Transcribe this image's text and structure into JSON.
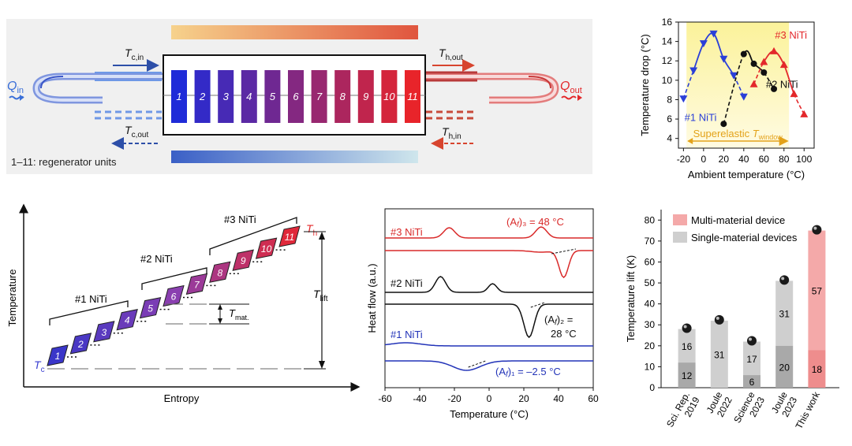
{
  "panel_a": {
    "units": [
      "1",
      "2",
      "3",
      "4",
      "5",
      "6",
      "7",
      "8",
      "9",
      "10",
      "11"
    ],
    "q_in": "Q",
    "q_in_sub": "in",
    "q_out": "Q",
    "q_out_sub": "out",
    "tc_in": "T",
    "tc_in_sub": "c,in",
    "tc_out": "T",
    "tc_out_sub": "c,out",
    "th_out": "T",
    "th_out_sub": "h,out",
    "th_in": "T",
    "th_in_sub": "h,in",
    "caption": "1–11: regenerator units",
    "colors": {
      "cold": "#1f2bd8",
      "hot": "#e8242a",
      "panel_bg": "#f0f0f0"
    }
  },
  "chart_b": {
    "type": "line",
    "ylabel": "Temperature drop (°C)",
    "xlabel": "Ambient temperature (°C)",
    "xlim": [
      -25,
      110
    ],
    "ylim": [
      3,
      16
    ],
    "xticks": [
      -20,
      0,
      20,
      40,
      60,
      80,
      100
    ],
    "yticks": [
      4,
      6,
      8,
      10,
      12,
      14,
      16
    ],
    "window_label": "Superelastic ",
    "window_T": "T",
    "window_sub": "window",
    "window_range": [
      -17,
      85
    ],
    "series": [
      {
        "name": "#1 NiTi",
        "color": "#2a3fd8",
        "marker": "triangle-down",
        "x": [
          -20,
          -10,
          0,
          10,
          20,
          30,
          40
        ],
        "y": [
          8.1,
          11.0,
          13.8,
          14.8,
          12.2,
          10.5,
          8.3
        ]
      },
      {
        "name": "#2 NiTi",
        "color": "#111111",
        "marker": "circle",
        "x": [
          20,
          40,
          50,
          60,
          70
        ],
        "y": [
          5.5,
          12.7,
          11.7,
          10.8,
          9.1
        ]
      },
      {
        "name": "#3 NiTi",
        "color": "#e3282b",
        "marker": "triangle-up",
        "x": [
          50,
          60,
          70,
          80,
          90,
          100
        ],
        "y": [
          9.6,
          11.9,
          13.0,
          11.6,
          8.6,
          6.5
        ]
      }
    ]
  },
  "panel_c": {
    "ylabel": "Temperature",
    "xlabel": "Entropy",
    "units": [
      "1",
      "2",
      "3",
      "4",
      "5",
      "6",
      "7",
      "8",
      "9",
      "10",
      "11"
    ],
    "groups": [
      "#1 NiTi",
      "#2 NiTi",
      "#3 NiTi"
    ],
    "tc": "T",
    "tc_sub": "c",
    "th": "T",
    "th_sub": "h",
    "tmat": "T",
    "tmat_sub": "mat.",
    "tlift": "T",
    "tlift_sub": "lift"
  },
  "chart_d": {
    "type": "line",
    "ylabel": "Heat flow (a.u.)",
    "xlabel": "Temperature (°C)",
    "xlim": [
      -60,
      60
    ],
    "xticks": [
      -60,
      -40,
      -20,
      0,
      20,
      40,
      60
    ],
    "series": [
      {
        "name": "#3 NiTi",
        "color": "#d92a2a",
        "annotation": "(A",
        "annotation_sub": "f",
        "annotation_tail": ")₃ = 48 °C"
      },
      {
        "name": "#2 NiTi",
        "color": "#111111",
        "annotation": "(A",
        "annotation_sub": "f",
        "annotation_tail": ")₂ =",
        "annotation_line2": "28 °C"
      },
      {
        "name": "#1 NiTi",
        "color": "#2233b8",
        "annotation": "(A",
        "annotation_sub": "f",
        "annotation_tail": ")₁ = –2.5 °C"
      }
    ]
  },
  "chart_e": {
    "type": "bar",
    "ylabel": "Temperature lift (K)",
    "ylim": [
      0,
      85
    ],
    "yticks": [
      0,
      10,
      20,
      30,
      40,
      50,
      60,
      70,
      80
    ],
    "legend": [
      "Multi-material device",
      "Single-material devices"
    ],
    "categories": [
      "Sci. Rep.\n2019",
      "Joule\n2022",
      "Science\n2023",
      "Joule\n2023",
      "This work"
    ],
    "bottom": [
      12,
      0,
      6,
      20,
      18
    ],
    "top": [
      16,
      31,
      17,
      31,
      57
    ],
    "bottom_labels": [
      "12",
      "",
      "6",
      "20",
      "18"
    ],
    "top_labels": [
      "16",
      "31",
      "17",
      "31",
      "57"
    ],
    "totals": [
      28,
      32,
      22,
      51,
      75
    ],
    "colors": {
      "single_light": "#cfcfcf",
      "single_dark": "#a9a9a9",
      "multi_light": "#f4a9a9",
      "multi_dark": "#ee8d8d"
    }
  }
}
